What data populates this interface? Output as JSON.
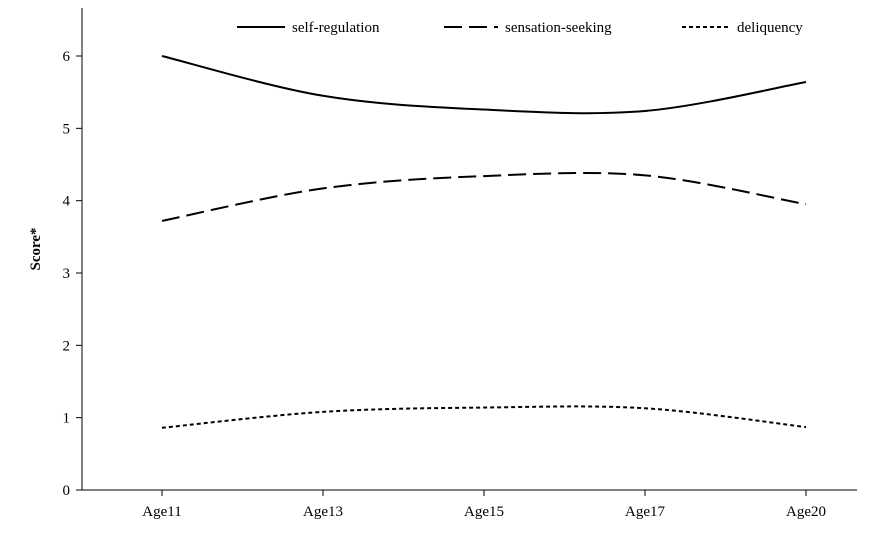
{
  "chart_data": {
    "type": "line",
    "categories": [
      "Age11",
      "Age13",
      "Age15",
      "Age17",
      "Age20"
    ],
    "x_values": [
      11,
      13,
      15,
      17,
      20
    ],
    "ylabel": "Score*",
    "xlabel": "",
    "ylim": [
      0,
      6.5
    ],
    "yticks": [
      0,
      1,
      2,
      3,
      4,
      5,
      6
    ],
    "grid": false,
    "legend_position": "top",
    "series": [
      {
        "name": "self-regulation",
        "style": "solid",
        "values": [
          6.0,
          5.45,
          5.26,
          5.24,
          5.64
        ]
      },
      {
        "name": "sensation-seeking",
        "style": "dashed",
        "values": [
          3.72,
          4.17,
          4.34,
          4.35,
          3.95
        ]
      },
      {
        "name": "deliquency",
        "style": "dotted",
        "values": [
          0.86,
          1.08,
          1.14,
          1.13,
          0.87
        ]
      }
    ],
    "line_color": "#000000"
  }
}
